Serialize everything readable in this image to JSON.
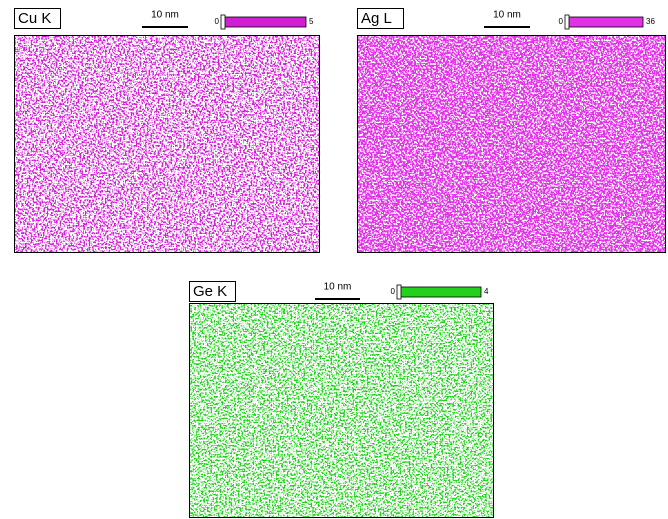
{
  "panels": [
    {
      "label": "Cu K",
      "scale_bar": "10 nm",
      "colorbar_min": 0,
      "colorbar_max": 5,
      "color": "#d21fd6"
    },
    {
      "label": "Ag L",
      "scale_bar": "10 nm",
      "colorbar_min": 0,
      "colorbar_max": 36,
      "color": "#e032e6"
    },
    {
      "label": "Ge K",
      "scale_bar": "10 nm",
      "colorbar_min": 0,
      "colorbar_max": 4,
      "color": "#22d11c"
    }
  ]
}
